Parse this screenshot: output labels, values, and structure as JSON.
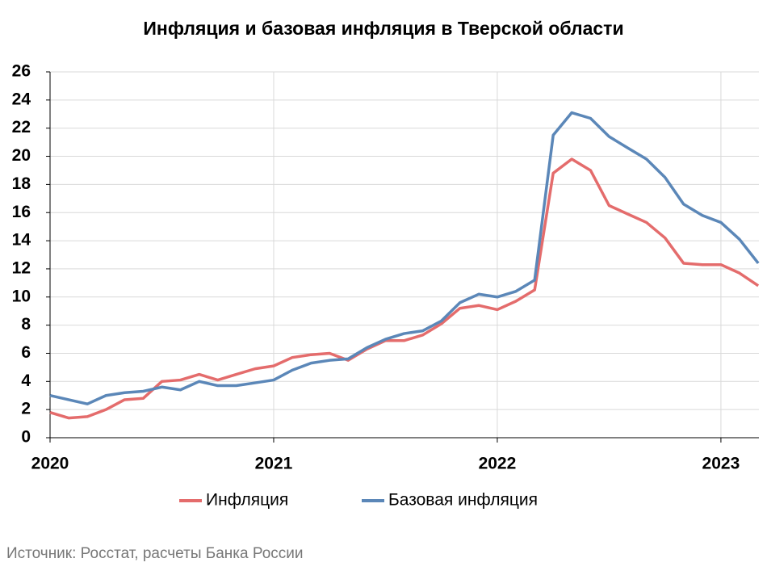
{
  "chart_data": {
    "type": "line",
    "title": "Инфляция и базовая инфляция в Тверской области",
    "source": "Источник: Росстат, расчеты Банка России",
    "x": [
      2020,
      2020.083,
      2020.167,
      2020.25,
      2020.333,
      2020.417,
      2020.5,
      2020.583,
      2020.667,
      2020.75,
      2020.833,
      2020.917,
      2021,
      2021.083,
      2021.167,
      2021.25,
      2021.333,
      2021.417,
      2021.5,
      2021.583,
      2021.667,
      2021.75,
      2021.833,
      2021.917,
      2022,
      2022.083,
      2022.167,
      2022.25,
      2022.333,
      2022.417,
      2022.5,
      2022.583,
      2022.667,
      2022.75,
      2022.833,
      2022.917,
      2023,
      2023.083,
      2023.167
    ],
    "series": [
      {
        "name": "Инфляция",
        "color": "#e46c6c",
        "values": [
          1.8,
          1.4,
          1.5,
          2.0,
          2.7,
          2.8,
          4.0,
          4.1,
          4.5,
          4.1,
          4.5,
          4.9,
          5.1,
          5.7,
          5.9,
          6.0,
          5.5,
          6.3,
          6.9,
          6.9,
          7.3,
          8.1,
          9.2,
          9.4,
          9.1,
          9.7,
          10.5,
          18.8,
          19.8,
          19.0,
          16.5,
          15.9,
          15.3,
          14.2,
          12.4,
          12.3,
          12.3,
          11.7,
          10.8
        ]
      },
      {
        "name": "Базовая инфляция",
        "color": "#5b87b8",
        "values": [
          3.0,
          2.7,
          2.4,
          3.0,
          3.2,
          3.3,
          3.6,
          3.4,
          4.0,
          3.7,
          3.7,
          3.9,
          4.1,
          4.8,
          5.3,
          5.5,
          5.6,
          6.4,
          7.0,
          7.4,
          7.6,
          8.3,
          9.6,
          10.2,
          10.0,
          10.4,
          11.2,
          21.5,
          23.1,
          22.7,
          21.4,
          20.6,
          19.8,
          18.5,
          16.6,
          15.8,
          15.3,
          14.1,
          12.4
        ]
      }
    ],
    "xlim": [
      2020,
      2023.17
    ],
    "xticks": [
      2020,
      2021,
      2022,
      2023
    ],
    "ylim": [
      0,
      26
    ],
    "yticks": [
      0,
      2,
      4,
      6,
      8,
      10,
      12,
      14,
      16,
      18,
      20,
      22,
      24,
      26
    ],
    "grid": true,
    "legend": "bottom"
  }
}
